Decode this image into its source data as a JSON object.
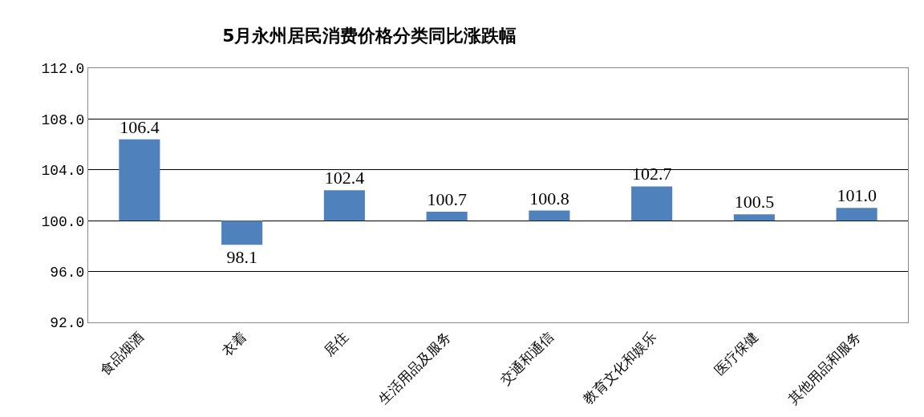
{
  "chart_data": {
    "type": "bar",
    "title": "5月永州居民消费价格分类同比涨跌幅",
    "categories": [
      "食品烟酒",
      "衣着",
      "居住",
      "生活用品及服务",
      "交通和通信",
      "教育文化和娱乐",
      "医疗保健",
      "其他用品和服务"
    ],
    "base": [
      100,
      100,
      100,
      100,
      100,
      100,
      100,
      100
    ],
    "values": [
      6.4,
      -1.9,
      2.4,
      0.7,
      0.8,
      2.7,
      0.5,
      1.0
    ],
    "value_labels": [
      "106.4",
      "98.1",
      "102.4",
      "100.7",
      "100.8",
      "102.7",
      "100.5",
      "101.0"
    ],
    "color": "#4f81bd",
    "ylim": [
      92,
      112
    ],
    "yticks": [
      {
        "value": 92,
        "label": "92.0"
      },
      {
        "value": 96,
        "label": "96.0"
      },
      {
        "value": 100,
        "label": "100.0"
      },
      {
        "value": 104,
        "label": "104.0"
      },
      {
        "value": 108,
        "label": "108.0"
      },
      {
        "value": 112,
        "label": "112.0"
      }
    ],
    "grid": "y",
    "legend": false
  }
}
